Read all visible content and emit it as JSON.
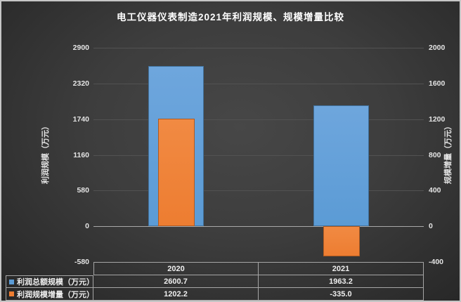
{
  "title": "电工仪器仪表制造2021年利润规模、规模增量比较",
  "chart_data": {
    "type": "bar",
    "title": "电工仪器仪表制造2021年利润规模、规模增量比较",
    "categories": [
      "2020",
      "2021"
    ],
    "series": [
      {
        "name": "利润总额规模（万元）",
        "axis": "left",
        "values": [
          2600.7,
          1963.2
        ],
        "color": "#5b9bd5",
        "color_light": "#6ea6dd",
        "border": "#41719c"
      },
      {
        "name": "利润规模增量（万元）",
        "axis": "right",
        "values": [
          1202.2,
          -335.0
        ],
        "color": "#ed7d31",
        "color_light": "#f18a43",
        "border": "#ae5a21"
      }
    ],
    "left_axis": {
      "label": "利润规模（万元）",
      "min": -580,
      "max": 2900,
      "ticks": [
        2900,
        2320,
        1740,
        1160,
        580,
        0,
        -580
      ]
    },
    "right_axis": {
      "label": "规模增量（万元）",
      "min": -400,
      "max": 2000,
      "ticks": [
        2000,
        1600,
        1200,
        800,
        400,
        0,
        -400
      ]
    },
    "grid": true,
    "legend_position": "bottom-data-table"
  },
  "table": {
    "columns": [
      "2020",
      "2021"
    ],
    "rows": [
      {
        "label": "利润总额规模（万元）",
        "values": [
          "2600.7",
          "1963.2"
        ]
      },
      {
        "label": "利润规模增量（万元）",
        "values": [
          "1202.2",
          "-335.0"
        ]
      }
    ]
  },
  "colors": {
    "background_center": "#474747",
    "background_edge": "#262626",
    "text": "#e8e8e8",
    "gridline": "#525252",
    "axis_line": "#a8a8a8",
    "table_border": "#a6a6a6",
    "frame": "#c6c6c6",
    "series_blue": "#5b9bd5",
    "series_orange": "#ed7d31"
  }
}
